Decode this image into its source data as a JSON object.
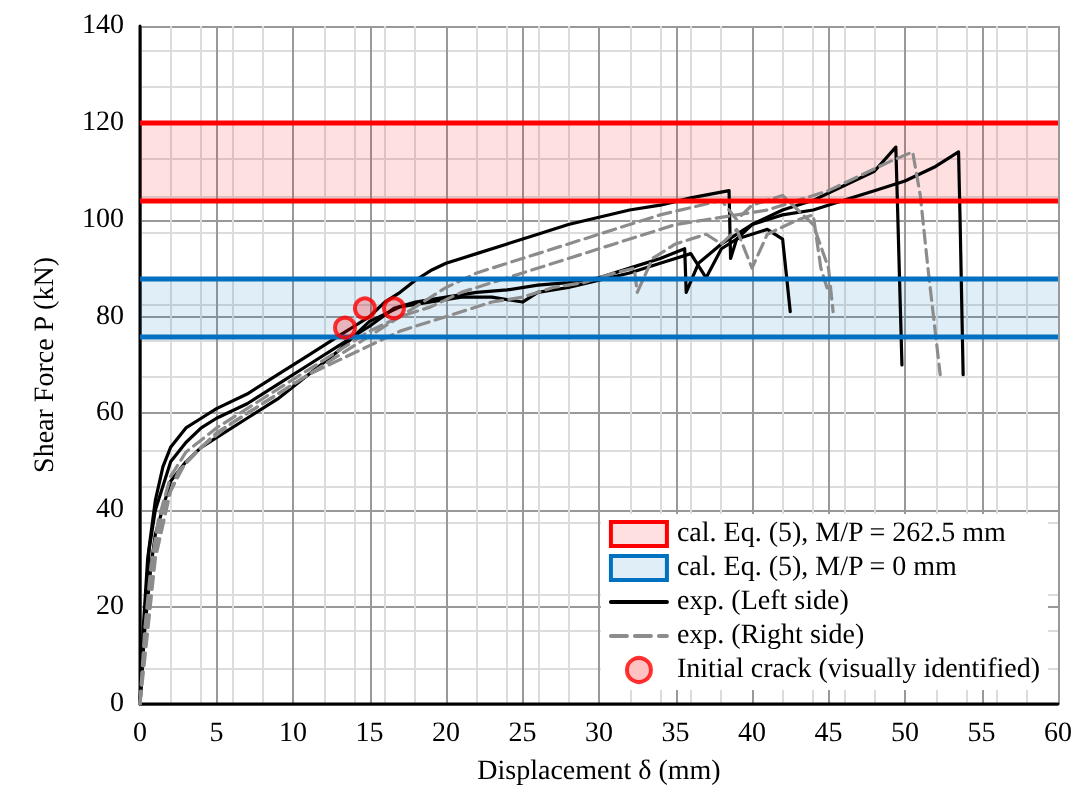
{
  "chart_data": {
    "type": "line",
    "xlabel": "Displacement δ (mm)",
    "ylabel": "Shear Force P (kN)",
    "xlim": [
      0,
      60
    ],
    "xticks": [
      0,
      5,
      10,
      15,
      20,
      25,
      30,
      35,
      40,
      45,
      50,
      55,
      60
    ],
    "ylim": [
      0,
      140
    ],
    "yticks": [
      0,
      20,
      40,
      60,
      80,
      100,
      120,
      140
    ],
    "grid": true,
    "legend": "bottom right",
    "marker": "none",
    "ref_lines": [
      {
        "axis": "y",
        "value": 120,
        "color": "#ff0000"
      },
      {
        "axis": "y",
        "value": 104,
        "color": "#ff0000"
      },
      {
        "axis": "y",
        "value": 88,
        "color": "#0070c0"
      },
      {
        "axis": "y",
        "value": 76,
        "color": "#0070c0"
      }
    ],
    "bands": [
      {
        "axis": "y",
        "from": 104,
        "to": 120,
        "label": "cal. Eq. (5), M/P = 262.5 mm",
        "color": "#ff0000"
      },
      {
        "axis": "y",
        "from": 76,
        "to": 88,
        "label": "cal. Eq. (5), M/P = 0 mm",
        "color": "#0070c0"
      }
    ],
    "series": [
      {
        "name": "exp. (Left side)",
        "color": "#000000",
        "line_style": "solid",
        "x": [
          0,
          0.2,
          0.5,
          1,
          1.5,
          2,
          3,
          4,
          5,
          7,
          9,
          11,
          13,
          14,
          15,
          16,
          17,
          18,
          19,
          20,
          22,
          24,
          26,
          28,
          30,
          32,
          34,
          36,
          38.5,
          38.6,
          39,
          40,
          42,
          44,
          46,
          48,
          49.4,
          49.5,
          49.8
        ],
        "values": [
          0,
          15,
          30,
          42,
          49,
          53,
          57,
          59,
          61,
          64,
          68,
          72,
          76,
          78,
          80,
          83,
          85,
          87.5,
          89.5,
          91,
          93,
          95,
          97,
          99,
          100.5,
          102,
          103,
          104.5,
          106,
          92,
          96,
          99,
          102,
          104,
          107,
          110,
          115,
          104,
          70
        ]
      },
      {
        "color": "#000000",
        "line_style": "solid",
        "x": [
          0,
          0.3,
          0.6,
          1,
          2,
          3,
          4,
          5,
          7,
          9,
          11,
          13,
          15,
          16.6,
          18,
          20,
          22,
          24,
          26,
          28,
          30,
          32,
          34,
          35.6,
          35.7,
          36.5,
          38,
          40,
          42,
          44,
          46,
          48,
          50,
          52,
          53.5,
          53.6,
          53.8
        ],
        "values": [
          0,
          18,
          32,
          40,
          50,
          54,
          57,
          59,
          62,
          66,
          70,
          74,
          78,
          81.7,
          83,
          84,
          85,
          85.5,
          86.5,
          87,
          88,
          90,
          92,
          94,
          85,
          91,
          95,
          99,
          101,
          102,
          104,
          106,
          108,
          111,
          114,
          100,
          68
        ]
      },
      {
        "color": "#000000",
        "line_style": "solid",
        "x": [
          0,
          0.3,
          0.7,
          1,
          2,
          3,
          4,
          5,
          7,
          9,
          11,
          13,
          15,
          17,
          19,
          21,
          23,
          25,
          26,
          28,
          30,
          32,
          34,
          36,
          37,
          38,
          39,
          40,
          41,
          42,
          42.5
        ],
        "values": [
          0,
          15,
          28,
          35,
          46,
          50,
          53,
          55,
          59,
          63,
          68,
          73,
          79,
          82,
          83,
          84,
          84,
          83,
          85,
          86,
          87.5,
          89,
          91,
          93,
          88,
          94,
          96,
          97,
          98,
          96,
          81
        ]
      },
      {
        "name": "exp. (Right side)",
        "color": "#8c8c8c",
        "line_style": "dashed",
        "x": [
          0,
          0.3,
          0.7,
          1.2,
          2,
          3,
          5,
          7,
          9,
          11,
          13,
          15,
          17,
          19,
          21,
          23,
          25,
          27,
          29,
          31,
          33,
          35,
          37,
          39,
          41,
          43,
          45,
          47,
          49,
          50.5,
          51,
          51.5,
          52.3
        ],
        "values": [
          0,
          15,
          28,
          38,
          47,
          52,
          57,
          61,
          65,
          69,
          73,
          77,
          80,
          82,
          85,
          87,
          89,
          91,
          93,
          95,
          97,
          99,
          100,
          101,
          102,
          104,
          106,
          109,
          112,
          114,
          105,
          90,
          68
        ]
      },
      {
        "color": "#8c8c8c",
        "line_style": "dashed",
        "x": [
          0,
          0.3,
          0.8,
          1.5,
          2.5,
          4,
          6,
          8,
          10,
          12,
          14,
          16,
          18,
          20,
          22,
          24,
          26,
          28,
          30,
          32,
          34,
          36,
          38,
          39,
          40,
          42,
          44,
          45,
          45.3
        ],
        "values": [
          0,
          12,
          28,
          40,
          48,
          53,
          58,
          62,
          66,
          70,
          74,
          78,
          82,
          86,
          89,
          91,
          93,
          95,
          97,
          99,
          101,
          102.5,
          104,
          100,
          103,
          105,
          99,
          90,
          81
        ]
      },
      {
        "color": "#8c8c8c",
        "line_style": "dashed",
        "x": [
          0,
          0.4,
          1,
          2,
          3,
          5,
          7,
          9,
          11,
          13,
          15,
          17,
          19,
          21,
          23,
          25,
          27,
          29,
          31,
          32.3,
          32.5,
          33.5,
          35,
          37,
          38,
          39,
          40,
          41,
          43,
          44,
          44.5,
          45
        ],
        "values": [
          0,
          12,
          30,
          44,
          50,
          56,
          60,
          64,
          68,
          71,
          74,
          77,
          79,
          81,
          83,
          84,
          86,
          87,
          89,
          90,
          85,
          92,
          95,
          97,
          95,
          98,
          90,
          97,
          100,
          101,
          90,
          85
        ]
      },
      {
        "name": "Initial crack (visually identified)",
        "type": "scatter",
        "marker": "circle",
        "color": "#ff0000",
        "x": [
          13.4,
          14.7,
          16.6
        ],
        "values": [
          77.7,
          81.7,
          81.7
        ]
      }
    ]
  }
}
